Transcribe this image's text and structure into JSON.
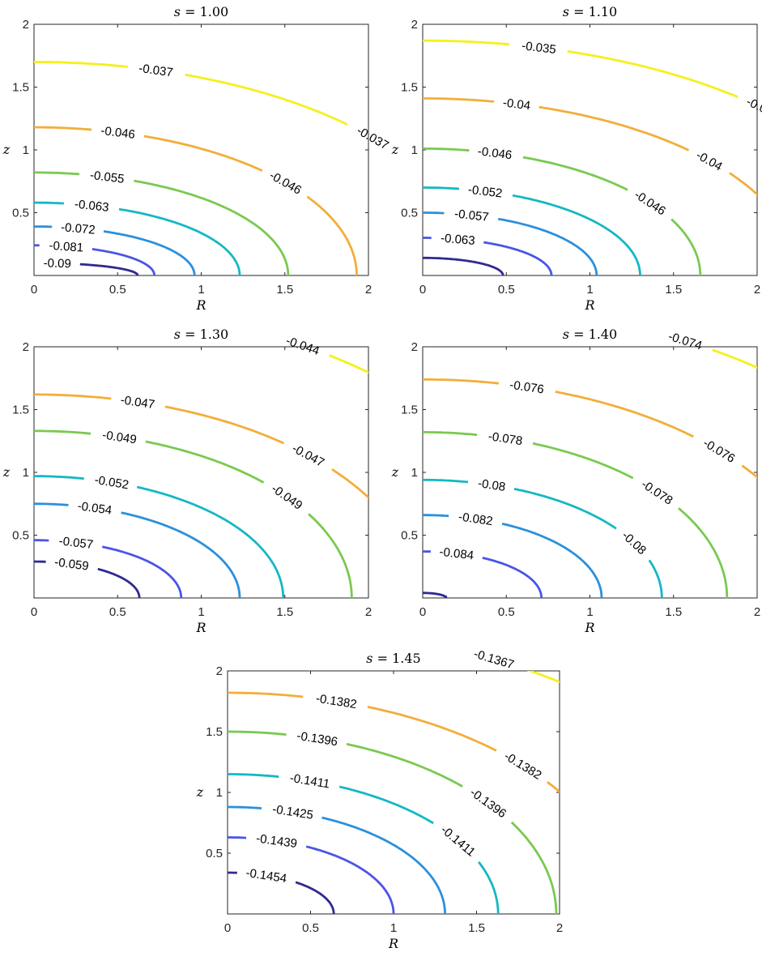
{
  "colors": [
    "#2f2a8f",
    "#4a55e6",
    "#2b90dc",
    "#14b8c4",
    "#7ac94f",
    "#f2ae3a",
    "#f5f01e"
  ],
  "chart_data": [
    {
      "type": "contour",
      "title": "s = 1.00",
      "title_var": "s",
      "title_value": "1.00",
      "xlabel": "R",
      "ylabel": "z",
      "xlim": [
        0,
        2
      ],
      "ylim": [
        0,
        2
      ],
      "xticks": [
        "0",
        "0.5",
        "1",
        "1.5",
        "2"
      ],
      "yticks": [
        "0.5",
        "1",
        "1.5",
        "2"
      ],
      "levels": [
        {
          "label": "-0.09",
          "z0": 0.1,
          "r0": 0.62,
          "labels": [
            {
              "t": 0.22
            }
          ]
        },
        {
          "label": "-0.081",
          "z0": 0.24,
          "r0": 0.72,
          "labels": [
            {
              "t": 0.25
            }
          ]
        },
        {
          "label": "-0.072",
          "z0": 0.39,
          "r0": 0.96,
          "labels": [
            {
              "t": 0.25
            }
          ]
        },
        {
          "label": "-0.063",
          "z0": 0.58,
          "r0": 1.23,
          "labels": [
            {
              "t": 0.25
            }
          ]
        },
        {
          "label": "-0.055",
          "z0": 0.82,
          "r0": 1.52,
          "labels": [
            {
              "t": 0.25
            }
          ]
        },
        {
          "label": "-0.046",
          "z0": 1.18,
          "r0": 1.93,
          "labels": [
            {
              "t": 0.22
            },
            {
              "t": 0.68
            }
          ]
        },
        {
          "label": "-0.037",
          "z0": 1.7,
          "r0": 2.65,
          "labels": [
            {
              "t": 0.23
            },
            {
              "t": 0.66
            }
          ]
        }
      ]
    },
    {
      "type": "contour",
      "title": "s = 1.10",
      "title_var": "s",
      "title_value": "1.10",
      "xlabel": "R",
      "ylabel": "z",
      "xlim": [
        0,
        2
      ],
      "ylim": [
        0,
        2
      ],
      "xticks": [
        "0",
        "0.5",
        "1",
        "1.5",
        "2"
      ],
      "yticks": [
        "0.5",
        "1",
        "1.5",
        "2"
      ],
      "levels": [
        {
          "label": "",
          "z0": 0.14,
          "r0": 0.48,
          "labels": []
        },
        {
          "label": "-0.063",
          "z0": 0.3,
          "r0": 0.77,
          "labels": [
            {
              "t": 0.25
            }
          ]
        },
        {
          "label": "-0.057",
          "z0": 0.5,
          "r0": 1.04,
          "labels": [
            {
              "t": 0.25
            }
          ]
        },
        {
          "label": "-0.052",
          "z0": 0.7,
          "r0": 1.3,
          "labels": [
            {
              "t": 0.25
            }
          ]
        },
        {
          "label": "-0.046",
          "z0": 1.01,
          "r0": 1.66,
          "labels": [
            {
              "t": 0.22
            },
            {
              "t": 0.72
            }
          ]
        },
        {
          "label": "-0.04",
          "z0": 1.41,
          "r0": 2.25,
          "labels": [
            {
              "t": 0.21
            },
            {
              "t": 0.66
            }
          ]
        },
        {
          "label": "-0.035",
          "z0": 1.87,
          "r0": 2.9,
          "labels": [
            {
              "t": 0.2
            },
            {
              "t": 0.6
            }
          ]
        }
      ]
    },
    {
      "type": "contour",
      "title": "s = 1.30",
      "title_var": "s",
      "title_value": "1.30",
      "xlabel": "R",
      "ylabel": "z",
      "xlim": [
        0,
        2
      ],
      "ylim": [
        0,
        2
      ],
      "xticks": [
        "0",
        "0.5",
        "1",
        "1.5",
        "2"
      ],
      "yticks": [
        "0.5",
        "1",
        "1.5",
        "2"
      ],
      "levels": [
        {
          "label": "-0.059",
          "z0": 0.29,
          "r0": 0.63,
          "labels": [
            {
              "t": 0.32
            }
          ]
        },
        {
          "label": "-0.057",
          "z0": 0.46,
          "r0": 0.88,
          "labels": [
            {
              "t": 0.25
            }
          ]
        },
        {
          "label": "-0.054",
          "z0": 0.75,
          "r0": 1.23,
          "labels": [
            {
              "t": 0.25
            }
          ]
        },
        {
          "label": "-0.052",
          "z0": 0.97,
          "r0": 1.49,
          "labels": [
            {
              "t": 0.26
            }
          ]
        },
        {
          "label": "-0.049",
          "z0": 1.33,
          "r0": 1.9,
          "labels": [
            {
              "t": 0.22
            },
            {
              "t": 0.68
            }
          ]
        },
        {
          "label": "-0.047",
          "z0": 1.62,
          "r0": 2.3,
          "labels": [
            {
              "t": 0.22
            },
            {
              "t": 0.6
            }
          ]
        },
        {
          "label": "-0.044",
          "z0": 2.35,
          "r0": 3.1,
          "labels": [
            {
              "t": 0.42
            }
          ]
        }
      ]
    },
    {
      "type": "contour",
      "title": "s = 1.40",
      "title_var": "s",
      "title_value": "1.40",
      "xlabel": "R",
      "ylabel": "z",
      "xlim": [
        0,
        2
      ],
      "ylim": [
        0,
        2
      ],
      "xticks": [
        "0",
        "0.5",
        "1",
        "1.5",
        "2"
      ],
      "yticks": [
        "0.5",
        "1",
        "1.5",
        "2"
      ],
      "levels": [
        {
          "label": "",
          "z0": 0.04,
          "r0": 0.14,
          "labels": []
        },
        {
          "label": "-0.084",
          "z0": 0.37,
          "r0": 0.71,
          "labels": [
            {
              "t": 0.25
            }
          ]
        },
        {
          "label": "-0.082",
          "z0": 0.66,
          "r0": 1.07,
          "labels": [
            {
              "t": 0.25
            }
          ]
        },
        {
          "label": "-0.08",
          "z0": 0.94,
          "r0": 1.43,
          "labels": [
            {
              "t": 0.24
            },
            {
              "t": 0.78
            }
          ]
        },
        {
          "label": "-0.078",
          "z0": 1.32,
          "r0": 1.82,
          "labels": [
            {
              "t": 0.22
            },
            {
              "t": 0.65
            }
          ]
        },
        {
          "label": "-0.076",
          "z0": 1.74,
          "r0": 2.4,
          "labels": [
            {
              "t": 0.21
            },
            {
              "t": 0.62
            }
          ]
        },
        {
          "label": "-0.074",
          "z0": 2.35,
          "r0": 3.2,
          "labels": [
            {
              "t": 0.4
            }
          ]
        }
      ]
    },
    {
      "type": "contour",
      "title": "s = 1.45",
      "title_var": "s",
      "title_value": "1.45",
      "xlabel": "R",
      "ylabel": "z",
      "xlim": [
        0,
        2
      ],
      "ylim": [
        0,
        2
      ],
      "xticks": [
        "0",
        "0.5",
        "1",
        "1.5",
        "2"
      ],
      "yticks": [
        "0.5",
        "1",
        "1.5",
        "2"
      ],
      "levels": [
        {
          "label": "-0.1454",
          "z0": 0.34,
          "r0": 0.64,
          "labels": [
            {
              "t": 0.32
            }
          ]
        },
        {
          "label": "-0.1439",
          "z0": 0.63,
          "r0": 1.0,
          "labels": [
            {
              "t": 0.25
            }
          ]
        },
        {
          "label": "-0.1425",
          "z0": 0.88,
          "r0": 1.31,
          "labels": [
            {
              "t": 0.25
            }
          ]
        },
        {
          "label": "-0.1411",
          "z0": 1.15,
          "r0": 1.63,
          "labels": [
            {
              "t": 0.25
            },
            {
              "t": 0.74
            }
          ]
        },
        {
          "label": "-0.1396",
          "z0": 1.5,
          "r0": 1.98,
          "labels": [
            {
              "t": 0.22
            },
            {
              "t": 0.67
            }
          ]
        },
        {
          "label": "-0.1382",
          "z0": 1.82,
          "r0": 2.4,
          "labels": [
            {
              "t": 0.22
            },
            {
              "t": 0.62
            }
          ]
        },
        {
          "label": "-0.1367",
          "z0": 2.4,
          "r0": 3.3,
          "labels": [
            {
              "t": 0.4
            }
          ]
        }
      ]
    }
  ]
}
